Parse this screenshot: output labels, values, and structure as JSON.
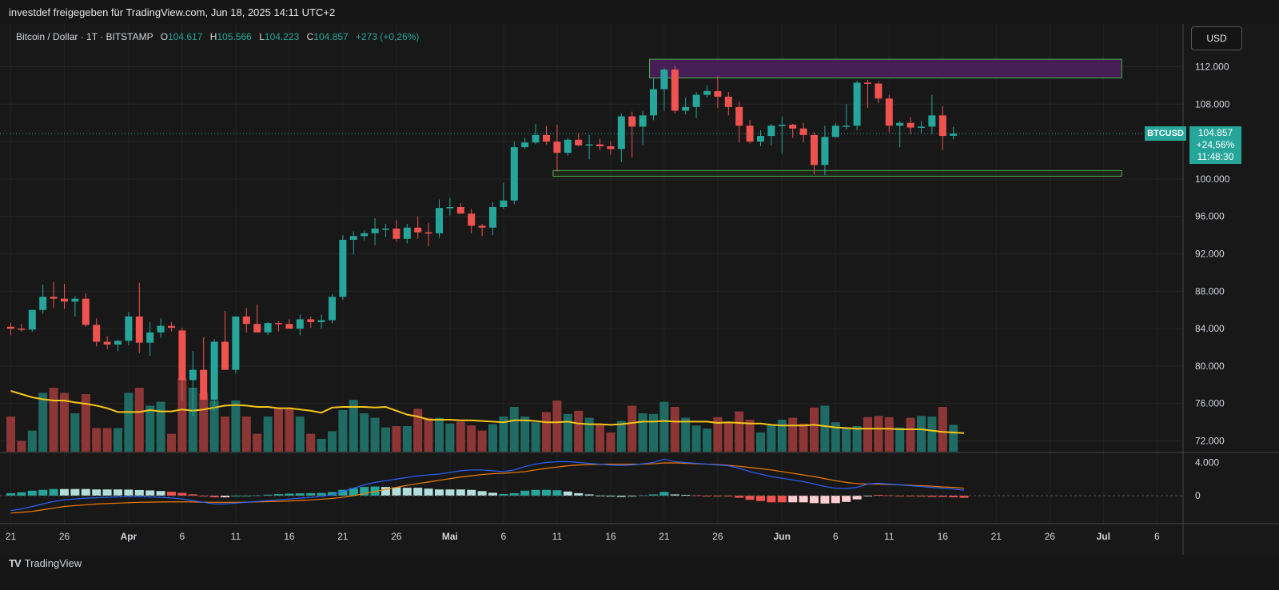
{
  "header": {
    "published": "investdef freigegeben für TradingView.com, Jun 18, 2025 14:11 UTC+2"
  },
  "legend": {
    "symbol": "Bitcoin / Dollar · 1T · BITSTAMP",
    "open_label": "O",
    "open": "104.617",
    "high_label": "H",
    "high": "105.566",
    "low_label": "L",
    "low": "104.223",
    "close_label": "C",
    "close": "104.857",
    "change": "+273 (+0,26%)"
  },
  "currency_button": "USD",
  "price_tag": {
    "symbol": "BTCUSD",
    "price": "104.857",
    "change": "+24,56%",
    "countdown": "11:48:30"
  },
  "footer": {
    "brand": "TradingView",
    "logo_text": "TV"
  },
  "colors": {
    "up": "#26a69a",
    "down": "#ef5350",
    "up_volume": "#1f6b63",
    "down_volume": "#8c3636",
    "ma": "#f5c518",
    "macd": "#2962ff",
    "signal": "#f57c00",
    "hist_pos": "#26a69a",
    "hist_pos_fade": "#b2dfdb",
    "hist_neg": "#ef5350",
    "hist_neg_fade": "#ffcdd2",
    "resistance_zone": "#4a1f5c",
    "support_zone": "#2a3a1a",
    "zone_border": "#4caf50"
  },
  "chart_data": {
    "type": "candlestick",
    "symbol": "BTCUSD",
    "interval": "1D",
    "price_axis": {
      "ticks": [
        "112.000",
        "108.000",
        "104.000",
        "100.000",
        "96.000",
        "92.000",
        "88.000",
        "84.000",
        "80.000",
        "76.000",
        "72.000"
      ],
      "values": [
        112000,
        108000,
        104000,
        100000,
        96000,
        92000,
        88000,
        84000,
        80000,
        76000,
        72000
      ],
      "range": [
        70500,
        114500
      ]
    },
    "time_axis": {
      "labels": [
        "21",
        "26",
        "Apr",
        "6",
        "11",
        "16",
        "21",
        "26",
        "Mai",
        "6",
        "11",
        "16",
        "21",
        "26",
        "Jun",
        "6",
        "11",
        "16",
        "21",
        "26",
        "Jul",
        "6"
      ],
      "label_days": [
        0,
        5,
        11,
        16,
        21,
        26,
        31,
        36,
        41,
        46,
        51,
        56,
        61,
        66,
        72,
        77,
        82,
        87,
        92,
        97,
        102,
        107
      ]
    },
    "start_day_label": "21",
    "candles_ohlc": [
      [
        84200,
        84600,
        83300,
        84000
      ],
      [
        84000,
        84500,
        83700,
        83900
      ],
      [
        83900,
        86000,
        83700,
        86000
      ],
      [
        86000,
        88700,
        85600,
        87400
      ],
      [
        87400,
        89000,
        86200,
        87200
      ],
      [
        87200,
        88800,
        86100,
        86900
      ],
      [
        86900,
        87500,
        85300,
        87200
      ],
      [
        87200,
        87800,
        84200,
        84400
      ],
      [
        84400,
        85100,
        82100,
        82600
      ],
      [
        82600,
        83200,
        81800,
        82300
      ],
      [
        82300,
        82800,
        81600,
        82700
      ],
      [
        82700,
        85800,
        82200,
        85300
      ],
      [
        85300,
        88900,
        81400,
        82500
      ],
      [
        82500,
        84700,
        81100,
        83600
      ],
      [
        83600,
        85100,
        83000,
        84300
      ],
      [
        84300,
        84700,
        83700,
        84100
      ],
      [
        83800,
        84100,
        76300,
        78500
      ],
      [
        78500,
        81600,
        74700,
        79600
      ],
      [
        79600,
        83100,
        76500,
        76400
      ],
      [
        76400,
        82900,
        75200,
        82600
      ],
      [
        82600,
        85900,
        81200,
        79600
      ],
      [
        79600,
        84700,
        79200,
        85300
      ],
      [
        85300,
        86200,
        83600,
        84500
      ],
      [
        84500,
        86600,
        83900,
        83600
      ],
      [
        83600,
        84700,
        83300,
        84600
      ],
      [
        84600,
        84800,
        83700,
        84500
      ],
      [
        84500,
        85000,
        84000,
        84000
      ],
      [
        84000,
        85500,
        83300,
        85000
      ],
      [
        85000,
        85300,
        84100,
        84700
      ],
      [
        84700,
        85500,
        84000,
        84900
      ],
      [
        84900,
        87700,
        84600,
        87400
      ],
      [
        87400,
        94000,
        87100,
        93500
      ],
      [
        93500,
        94400,
        91900,
        93900
      ],
      [
        93900,
        94500,
        93400,
        94200
      ],
      [
        94200,
        95800,
        92900,
        94700
      ],
      [
        94700,
        95200,
        93800,
        94700
      ],
      [
        94700,
        95600,
        93300,
        93600
      ],
      [
        93600,
        95200,
        93100,
        94800
      ],
      [
        94800,
        96000,
        93600,
        94300
      ],
      [
        94300,
        95300,
        92800,
        94200
      ],
      [
        94200,
        97800,
        93700,
        96900
      ],
      [
        96900,
        98000,
        96100,
        97000
      ],
      [
        97000,
        97400,
        96400,
        96300
      ],
      [
        96300,
        96800,
        94200,
        95000
      ],
      [
        95000,
        95200,
        93900,
        94800
      ],
      [
        94800,
        97500,
        94000,
        97000
      ],
      [
        97000,
        99600,
        96800,
        97700
      ],
      [
        97700,
        104000,
        97300,
        103400
      ],
      [
        103400,
        104400,
        103200,
        103900
      ],
      [
        103900,
        105900,
        103700,
        104700
      ],
      [
        104700,
        105700,
        103700,
        104000
      ],
      [
        104000,
        105800,
        100800,
        102800
      ],
      [
        102800,
        104400,
        102500,
        104200
      ],
      [
        104200,
        104900,
        103500,
        103600
      ],
      [
        103600,
        104700,
        102100,
        103700
      ],
      [
        103700,
        104300,
        103100,
        103500
      ],
      [
        103500,
        104000,
        102600,
        103200
      ],
      [
        103200,
        107000,
        101800,
        106700
      ],
      [
        106700,
        107200,
        102300,
        105600
      ],
      [
        105600,
        107300,
        103600,
        106800
      ],
      [
        106800,
        110800,
        106300,
        109600
      ],
      [
        109600,
        111900,
        107300,
        111700
      ],
      [
        111700,
        112100,
        107000,
        107300
      ],
      [
        107300,
        108700,
        106900,
        107700
      ],
      [
        107700,
        109300,
        106500,
        109000
      ],
      [
        109000,
        110000,
        108700,
        109400
      ],
      [
        109400,
        111000,
        107600,
        108800
      ],
      [
        108800,
        109300,
        106800,
        107700
      ],
      [
        107700,
        108300,
        103900,
        105700
      ],
      [
        105700,
        106300,
        103800,
        104000
      ],
      [
        104000,
        105200,
        103500,
        104600
      ],
      [
        104600,
        105900,
        103600,
        105700
      ],
      [
        105700,
        106700,
        102700,
        105800
      ],
      [
        105800,
        105900,
        104400,
        105400
      ],
      [
        105400,
        106000,
        103900,
        104700
      ],
      [
        104700,
        105000,
        100500,
        101500
      ],
      [
        101500,
        105700,
        100400,
        104500
      ],
      [
        104500,
        106000,
        104400,
        105700
      ],
      [
        105700,
        108000,
        105300,
        105700
      ],
      [
        105700,
        110500,
        105200,
        110300
      ],
      [
        110300,
        110600,
        107600,
        110200
      ],
      [
        110200,
        110400,
        108100,
        108600
      ],
      [
        108600,
        109000,
        105000,
        105700
      ],
      [
        105700,
        106200,
        103400,
        106000
      ],
      [
        106000,
        106600,
        104800,
        105500
      ],
      [
        105500,
        106200,
        104900,
        105600
      ],
      [
        105600,
        109000,
        104800,
        106800
      ],
      [
        106800,
        107800,
        103100,
        104600
      ],
      [
        104617,
        105566,
        104223,
        104857
      ]
    ],
    "candles_labels": [
      "21 Mär",
      "",
      "",
      "",
      "",
      "26 Mär",
      "",
      "",
      "",
      "",
      "",
      "Apr",
      "",
      "",
      "",
      "",
      "6 Apr",
      "",
      "",
      "",
      "",
      "11 Apr",
      "",
      "",
      "",
      "",
      "16 Apr",
      "",
      "",
      "",
      "",
      "21 Apr",
      "",
      "",
      "",
      "",
      "26 Apr",
      "",
      "",
      "",
      "",
      "Mai",
      "",
      "",
      "",
      "",
      "6 Mai",
      "",
      "",
      "",
      "",
      "11 Mai",
      "",
      "",
      "",
      "",
      "16 Mai",
      "",
      "",
      "",
      "",
      "21 Mai",
      "",
      "",
      "",
      "",
      "26 Mai",
      "",
      "",
      "",
      "",
      "",
      "Jun",
      "",
      "",
      "",
      "",
      "6 Jun",
      "",
      "",
      "",
      "",
      "11 Jun",
      "",
      "",
      "",
      "",
      "16 Jun",
      "",
      "18 Jun"
    ],
    "volume_relative": [
      0.55,
      0.17,
      0.33,
      0.92,
      1.0,
      0.92,
      0.6,
      0.9,
      0.37,
      0.37,
      0.37,
      0.92,
      1.0,
      0.72,
      0.78,
      0.28,
      1.15,
      1.0,
      0.92,
      0.8,
      0.55,
      0.8,
      0.55,
      0.28,
      0.55,
      0.69,
      0.69,
      0.55,
      0.28,
      0.2,
      0.32,
      0.65,
      0.81,
      0.6,
      0.53,
      0.38,
      0.4,
      0.4,
      0.67,
      0.53,
      0.53,
      0.44,
      0.47,
      0.41,
      0.33,
      0.43,
      0.55,
      0.7,
      0.55,
      0.46,
      0.62,
      0.8,
      0.59,
      0.64,
      0.53,
      0.42,
      0.3,
      0.48,
      0.72,
      0.6,
      0.59,
      0.78,
      0.7,
      0.53,
      0.41,
      0.36,
      0.54,
      0.46,
      0.63,
      0.5,
      0.3,
      0.43,
      0.5,
      0.53,
      0.44,
      0.69,
      0.72,
      0.46,
      0.36,
      0.4,
      0.54,
      0.56,
      0.54,
      0.38,
      0.53,
      0.56,
      0.55,
      0.7,
      0.42,
      0.15
    ],
    "volume_ma_relative": [
      0.95,
      0.9,
      0.85,
      0.82,
      0.8,
      0.8,
      0.77,
      0.75,
      0.72,
      0.68,
      0.62,
      0.62,
      0.62,
      0.65,
      0.63,
      0.63,
      0.66,
      0.64,
      0.66,
      0.69,
      0.72,
      0.73,
      0.72,
      0.7,
      0.7,
      0.68,
      0.68,
      0.66,
      0.64,
      0.61,
      0.69,
      0.7,
      0.7,
      0.7,
      0.69,
      0.7,
      0.64,
      0.58,
      0.55,
      0.5,
      0.5,
      0.5,
      0.49,
      0.49,
      0.48,
      0.47,
      0.46,
      0.49,
      0.49,
      0.48,
      0.46,
      0.46,
      0.47,
      0.44,
      0.43,
      0.43,
      0.42,
      0.43,
      0.45,
      0.47,
      0.47,
      0.48,
      0.47,
      0.47,
      0.47,
      0.47,
      0.45,
      0.46,
      0.45,
      0.44,
      0.44,
      0.42,
      0.41,
      0.41,
      0.41,
      0.42,
      0.4,
      0.38,
      0.37,
      0.36,
      0.36,
      0.36,
      0.36,
      0.35,
      0.35,
      0.35,
      0.33,
      0.31,
      0.3,
      0.29
    ],
    "zones": [
      {
        "name": "resistance",
        "from_day": 60,
        "to_day": 107,
        "low": 110800,
        "high": 112800
      },
      {
        "name": "support",
        "from_day": 51,
        "to_day": 107,
        "low": 100300,
        "high": 100900
      }
    ],
    "last_price": 104857,
    "macd_axis": {
      "ticks": [
        "4.000",
        "0"
      ],
      "values": [
        4000,
        0
      ]
    },
    "macd": [
      -1800,
      -1600,
      -1300,
      -1000,
      -700,
      -500,
      -400,
      -300,
      -250,
      -200,
      -150,
      -120,
      -120,
      -150,
      -200,
      -280,
      -400,
      -600,
      -800,
      -1000,
      -1000,
      -900,
      -800,
      -700,
      -600,
      -500,
      -400,
      -300,
      -200,
      -100,
      100,
      500,
      900,
      1300,
      1600,
      1800,
      2000,
      2200,
      2400,
      2500,
      2600,
      2800,
      3000,
      3100,
      3100,
      3000,
      2900,
      3100,
      3500,
      3800,
      4000,
      4100,
      4100,
      4000,
      3900,
      3800,
      3700,
      3650,
      3700,
      3850,
      4000,
      4400,
      4100,
      4000,
      3900,
      3800,
      3700,
      3600,
      3300,
      2900,
      2600,
      2300,
      2100,
      1900,
      1700,
      1400,
      1100,
      900,
      850,
      1000,
      1400,
      1500,
      1400,
      1300,
      1200,
      1100,
      1000,
      900,
      800,
      650
    ],
    "macd_signal": [
      -2100,
      -2000,
      -1900,
      -1700,
      -1500,
      -1300,
      -1200,
      -1100,
      -1000,
      -950,
      -900,
      -850,
      -800,
      -780,
      -760,
      -750,
      -740,
      -760,
      -780,
      -800,
      -800,
      -800,
      -780,
      -750,
      -720,
      -690,
      -640,
      -580,
      -510,
      -430,
      -330,
      -200,
      0,
      250,
      500,
      750,
      1000,
      1250,
      1450,
      1650,
      1850,
      2050,
      2250,
      2400,
      2550,
      2650,
      2700,
      2800,
      2900,
      3100,
      3300,
      3450,
      3600,
      3700,
      3750,
      3780,
      3800,
      3800,
      3800,
      3800,
      3850,
      3950,
      3950,
      3900,
      3850,
      3800,
      3750,
      3650,
      3550,
      3400,
      3250,
      3100,
      2900,
      2700,
      2500,
      2300,
      2050,
      1800,
      1600,
      1450,
      1400,
      1400,
      1350,
      1300,
      1250,
      1200,
      1150,
      1050,
      1000,
      900
    ],
    "macd_hist_colors": [
      "pos",
      "pos",
      "pos",
      "pos",
      "pos",
      "pos_fade",
      "pos_fade",
      "pos_fade",
      "pos_fade",
      "pos_fade",
      "pos_fade",
      "pos_fade",
      "pos_fade",
      "pos_fade",
      "pos_fade",
      "neg",
      "neg",
      "neg",
      "neg",
      "neg",
      "neg_fade",
      "pos",
      "pos",
      "pos",
      "pos",
      "pos",
      "pos",
      "pos",
      "pos",
      "pos",
      "pos",
      "pos",
      "pos",
      "pos",
      "pos",
      "pos_fade",
      "pos_fade",
      "pos_fade",
      "pos_fade",
      "pos_fade",
      "pos_fade",
      "pos_fade",
      "pos_fade",
      "pos_fade",
      "pos_fade",
      "pos_fade",
      "pos",
      "pos",
      "pos",
      "pos",
      "pos",
      "pos",
      "pos_fade",
      "pos_fade",
      "pos_fade",
      "pos_fade",
      "pos_fade",
      "pos_fade",
      "pos_fade",
      "pos",
      "pos",
      "pos",
      "pos_fade",
      "pos_fade",
      "neg",
      "neg",
      "neg",
      "neg",
      "neg",
      "neg",
      "neg",
      "neg",
      "neg",
      "neg_fade",
      "neg_fade",
      "neg_fade",
      "neg_fade",
      "neg_fade",
      "neg_fade",
      "neg_fade",
      "pos_fade",
      "neg",
      "neg",
      "neg",
      "neg",
      "neg",
      "neg",
      "neg",
      "neg",
      "neg"
    ]
  }
}
